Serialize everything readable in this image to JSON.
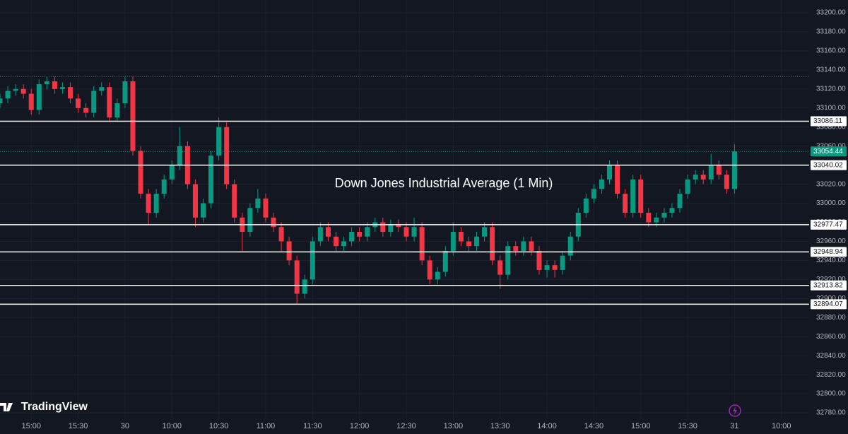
{
  "chart_data": {
    "type": "candlestick",
    "title": "Down Jones Industrial Average (1 Min)",
    "watermark": "TradingView",
    "up_color": "#089981",
    "down_color": "#f23645",
    "grid": true,
    "xlim": [
      0,
      520
    ],
    "xticks": [
      {
        "value": 20,
        "label": "15:00"
      },
      {
        "value": 50,
        "label": "15:30"
      },
      {
        "value": 80,
        "label": "30"
      },
      {
        "value": 110,
        "label": "10:00"
      },
      {
        "value": 140,
        "label": "10:30"
      },
      {
        "value": 170,
        "label": "11:00"
      },
      {
        "value": 200,
        "label": "11:30"
      },
      {
        "value": 230,
        "label": "12:00"
      },
      {
        "value": 260,
        "label": "12:30"
      },
      {
        "value": 290,
        "label": "13:00"
      },
      {
        "value": 320,
        "label": "13:30"
      },
      {
        "value": 350,
        "label": "14:00"
      },
      {
        "value": 380,
        "label": "14:30"
      },
      {
        "value": 410,
        "label": "15:00"
      },
      {
        "value": 440,
        "label": "15:30"
      },
      {
        "value": 470,
        "label": "31"
      },
      {
        "value": 500,
        "label": "10:00"
      }
    ],
    "ylim": [
      32772.6,
      33213.4
    ],
    "yticks": [
      {
        "value": 32780,
        "label": "32780.00"
      },
      {
        "value": 32800,
        "label": "32800.00"
      },
      {
        "value": 32820,
        "label": "32820.00"
      },
      {
        "value": 32840,
        "label": "32840.00"
      },
      {
        "value": 32860,
        "label": "32860.00"
      },
      {
        "value": 32880,
        "label": "32880.00"
      },
      {
        "value": 32900,
        "label": "32900.00"
      },
      {
        "value": 32920,
        "label": "32920.00"
      },
      {
        "value": 32940,
        "label": "32940.00"
      },
      {
        "value": 32960,
        "label": "32960.00"
      },
      {
        "value": 32980,
        "label": "32980.00"
      },
      {
        "value": 33000,
        "label": "33000.00"
      },
      {
        "value": 33020,
        "label": "33020.00"
      },
      {
        "value": 33040,
        "label": "33040.00"
      },
      {
        "value": 33060,
        "label": "33060.00"
      },
      {
        "value": 33080,
        "label": "33080.00"
      },
      {
        "value": 33100,
        "label": "33100.00"
      },
      {
        "value": 33120,
        "label": "33120.00"
      },
      {
        "value": 33140,
        "label": "33140.00"
      },
      {
        "value": 33160,
        "label": "33160.00"
      },
      {
        "value": 33180,
        "label": "33180.00"
      },
      {
        "value": 33200,
        "label": "33200.00"
      }
    ],
    "levels": [
      33086.11,
      33040.02,
      32977.47,
      32948.94,
      32913.82,
      32894.07
    ],
    "last_price": 33054.44,
    "session_high": 33133,
    "x": [
      0,
      5,
      10,
      15,
      20,
      25,
      30,
      35,
      40,
      45,
      50,
      55,
      60,
      65,
      70,
      75,
      80,
      85,
      90,
      95,
      100,
      105,
      110,
      115,
      120,
      125,
      130,
      135,
      140,
      145,
      150,
      155,
      160,
      165,
      170,
      175,
      180,
      185,
      190,
      195,
      200,
      205,
      210,
      215,
      220,
      225,
      230,
      235,
      240,
      245,
      250,
      255,
      260,
      265,
      270,
      275,
      280,
      285,
      290,
      295,
      300,
      305,
      310,
      315,
      320,
      325,
      330,
      335,
      340,
      345,
      350,
      355,
      360,
      365,
      370,
      375,
      380,
      385,
      390,
      395,
      400,
      405,
      410,
      415,
      420,
      425,
      430,
      435,
      440,
      445,
      450,
      455,
      460,
      465,
      470
    ],
    "open": [
      33105,
      33110,
      33118,
      33120,
      33115,
      33098,
      33125,
      33128,
      33120,
      33122,
      33110,
      33100,
      33095,
      33118,
      33122,
      33090,
      33105,
      33128,
      33055,
      33010,
      32990,
      33010,
      33025,
      33040,
      33060,
      33020,
      32985,
      33000,
      33050,
      33080,
      33020,
      32985,
      32970,
      32995,
      33005,
      32985,
      32975,
      32960,
      32940,
      32905,
      32920,
      32960,
      32975,
      32965,
      32955,
      32960,
      32970,
      32965,
      32975,
      32980,
      32970,
      32978,
      32975,
      32965,
      32975,
      32940,
      32920,
      32928,
      32950,
      32970,
      32960,
      32955,
      32965,
      32975,
      32940,
      32925,
      32955,
      32950,
      32960,
      32950,
      32930,
      32935,
      32930,
      32945,
      32965,
      32990,
      33005,
      33015,
      33025,
      33040,
      33010,
      32990,
      33025,
      32990,
      32980,
      32985,
      32990,
      32995,
      33010,
      33025,
      33030,
      33025,
      33040,
      33030,
      33015
    ],
    "high": [
      33115,
      33123,
      33125,
      33125,
      33120,
      33130,
      33133,
      33133,
      33127,
      33127,
      33115,
      33105,
      33123,
      33127,
      33127,
      33110,
      33133,
      33133,
      33060,
      33015,
      33015,
      33030,
      33045,
      33080,
      33065,
      33025,
      33005,
      33055,
      33090,
      33085,
      33025,
      32990,
      33000,
      33015,
      33010,
      32990,
      32980,
      32965,
      32945,
      32925,
      32965,
      32980,
      32980,
      32970,
      32965,
      32975,
      32975,
      32980,
      32985,
      32985,
      32983,
      32983,
      32980,
      32985,
      32980,
      32945,
      32933,
      32955,
      32980,
      32975,
      32965,
      32970,
      32980,
      32980,
      32945,
      32960,
      32960,
      32965,
      32965,
      32955,
      32940,
      32940,
      32950,
      32970,
      32995,
      33010,
      33020,
      33030,
      33045,
      33045,
      33015,
      33030,
      33030,
      32995,
      32990,
      32995,
      33000,
      33015,
      33030,
      33035,
      33035,
      33052,
      33045,
      33035,
      33062
    ],
    "low": [
      33100,
      33105,
      33113,
      33110,
      33093,
      33093,
      33120,
      33115,
      33115,
      33105,
      33095,
      33090,
      33090,
      33113,
      33085,
      33085,
      33100,
      33050,
      33005,
      32978,
      32985,
      33005,
      33020,
      33035,
      33015,
      32975,
      32980,
      32995,
      33045,
      33015,
      32980,
      32950,
      32965,
      32990,
      32980,
      32970,
      32950,
      32935,
      32894,
      32900,
      32915,
      32955,
      32960,
      32950,
      32950,
      32955,
      32960,
      32960,
      32970,
      32965,
      32965,
      32970,
      32960,
      32960,
      32935,
      32915,
      32915,
      32923,
      32945,
      32955,
      32950,
      32950,
      32960,
      32935,
      32910,
      32920,
      32945,
      32945,
      32945,
      32925,
      32922,
      32922,
      32925,
      32940,
      32960,
      32985,
      33000,
      33010,
      33020,
      33005,
      32985,
      32985,
      32985,
      32975,
      32975,
      32980,
      32985,
      32990,
      33005,
      33020,
      33020,
      33020,
      33025,
      33010,
      33010
    ],
    "close": [
      33110,
      33118,
      33120,
      33115,
      33098,
      33125,
      33128,
      33120,
      33122,
      33110,
      33100,
      33095,
      33118,
      33122,
      33090,
      33105,
      33128,
      33055,
      33010,
      32990,
      33010,
      33025,
      33040,
      33060,
      33020,
      32985,
      33000,
      33050,
      33080,
      33020,
      32985,
      32970,
      32995,
      33005,
      32985,
      32975,
      32960,
      32940,
      32905,
      32920,
      32960,
      32975,
      32965,
      32955,
      32960,
      32970,
      32965,
      32975,
      32980,
      32970,
      32978,
      32975,
      32965,
      32975,
      32940,
      32920,
      32928,
      32950,
      32970,
      32960,
      32955,
      32965,
      32975,
      32940,
      32925,
      32955,
      32950,
      32960,
      32950,
      32930,
      32935,
      32930,
      32945,
      32965,
      32990,
      33005,
      33015,
      33025,
      33040,
      33010,
      32990,
      33025,
      32990,
      32980,
      32985,
      32990,
      32995,
      33010,
      33025,
      33030,
      33025,
      33040,
      33030,
      33015,
      33054.44
    ]
  }
}
